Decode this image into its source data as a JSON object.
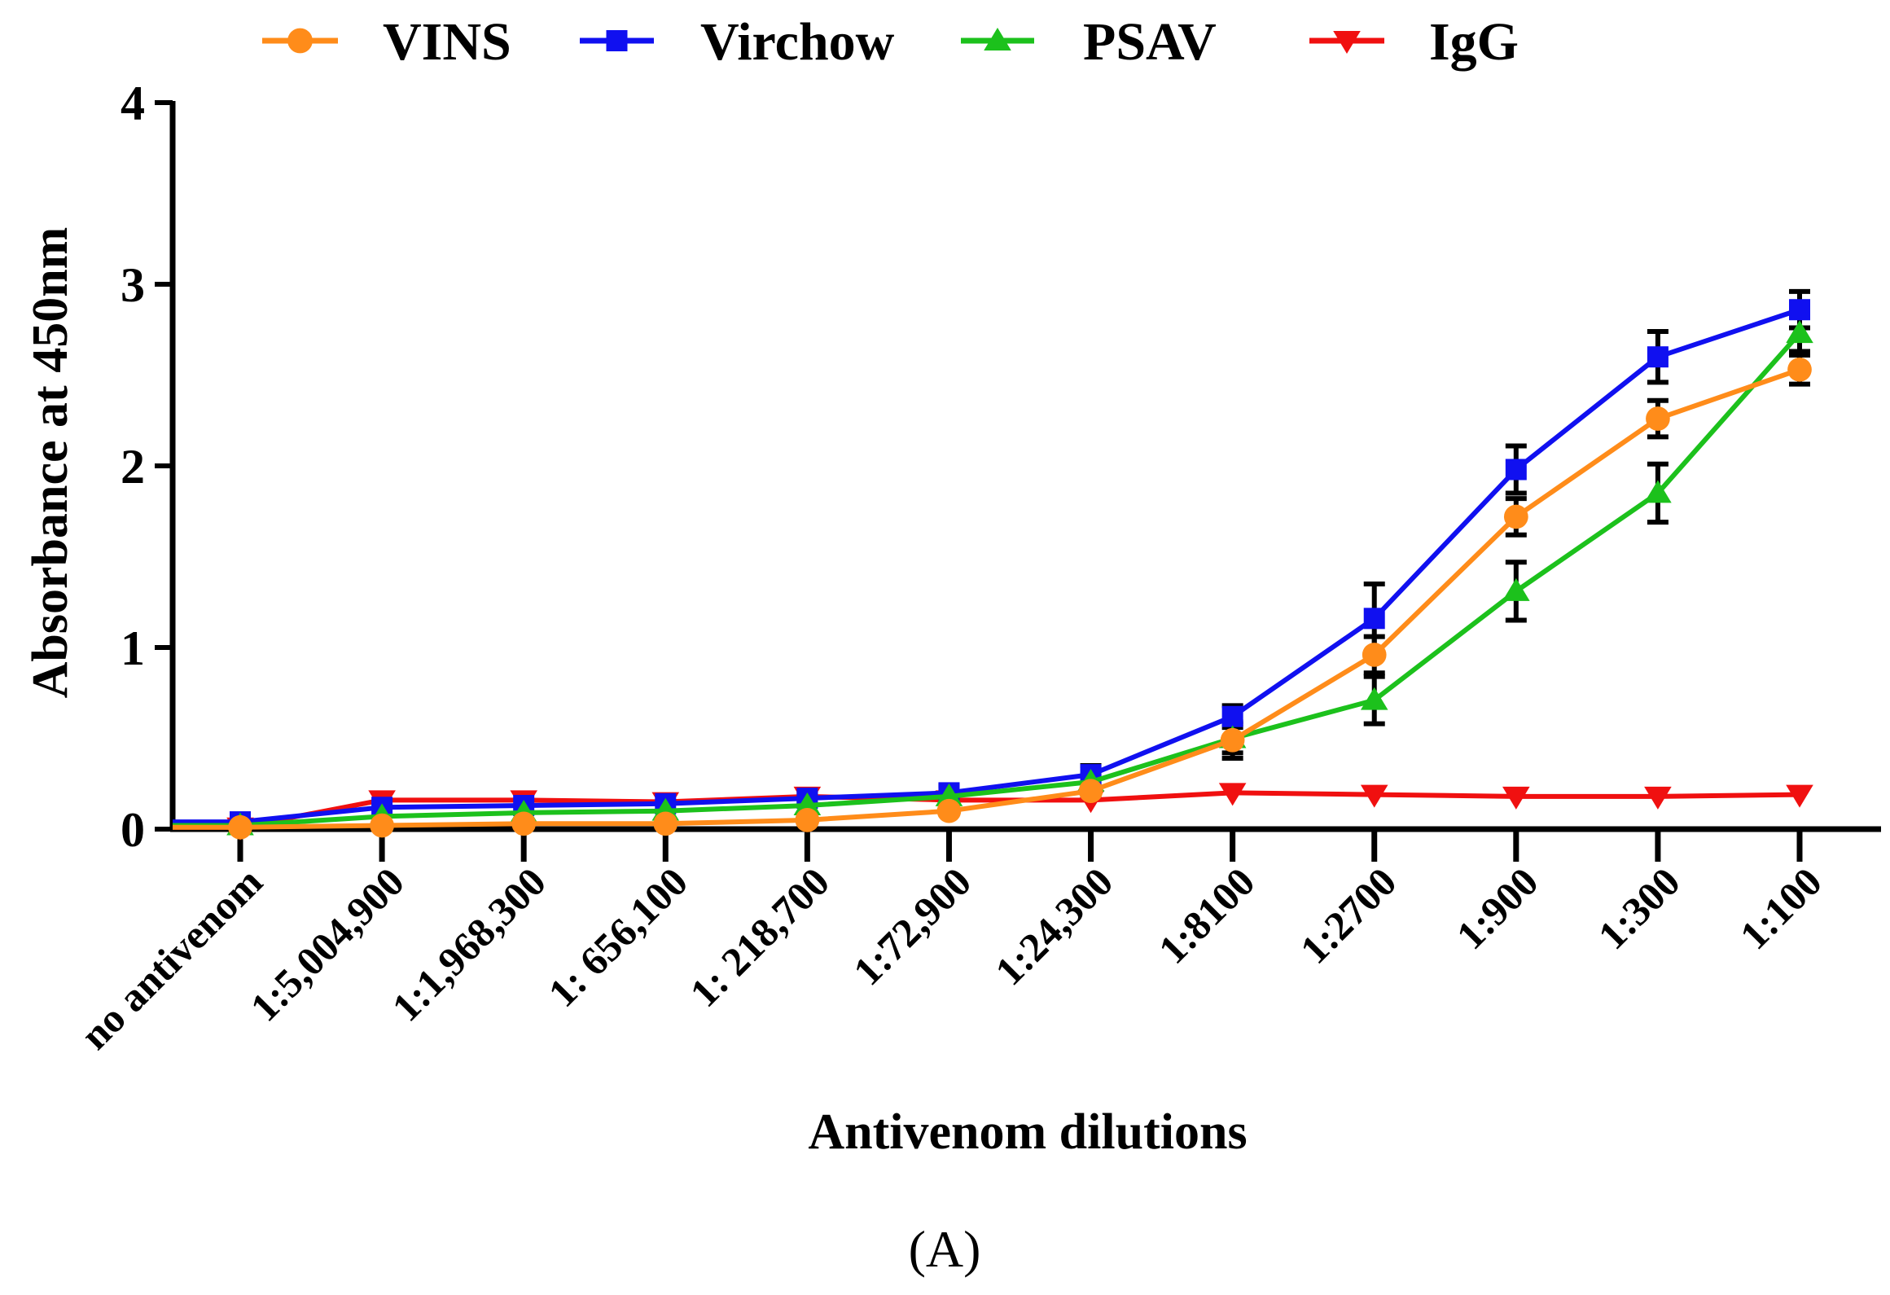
{
  "chart_data": {
    "type": "line",
    "title": "",
    "xlabel": "Antivenom dilutions",
    "ylabel": "Absorbance at 450nm",
    "panel_label": "(A)",
    "ylim": [
      0,
      4
    ],
    "yticks": [
      0,
      1,
      2,
      3,
      4
    ],
    "legend_position": "top",
    "categories": [
      "no antivenom",
      "1:5,004,900",
      "1:1,968,300",
      "1: 656,100",
      "1: 218,700",
      "1:72,900",
      "1:24,300",
      "1:8100",
      "1:2700",
      "1:900",
      "1:300",
      "1:100"
    ],
    "series": [
      {
        "name": "VINS",
        "color": "#ff8c1a",
        "marker": "circle",
        "values": [
          0.01,
          0.02,
          0.03,
          0.03,
          0.05,
          0.1,
          0.21,
          0.49,
          0.96,
          1.72,
          2.26,
          2.53
        ],
        "errors": [
          0,
          0,
          0,
          0,
          0,
          0.02,
          0.04,
          0.1,
          0.1,
          0.1,
          0.1,
          0.08
        ]
      },
      {
        "name": "Virchow",
        "color": "#1010f0",
        "marker": "square",
        "values": [
          0.04,
          0.12,
          0.13,
          0.14,
          0.17,
          0.2,
          0.3,
          0.62,
          1.16,
          1.98,
          2.6,
          2.86
        ],
        "errors": [
          0,
          0,
          0,
          0,
          0.03,
          0.04,
          0.05,
          0.06,
          0.19,
          0.13,
          0.14,
          0.1
        ]
      },
      {
        "name": "PSAV",
        "color": "#1cc11c",
        "marker": "triangle-up",
        "values": [
          0.02,
          0.07,
          0.09,
          0.1,
          0.13,
          0.18,
          0.26,
          0.5,
          0.71,
          1.31,
          1.85,
          2.73
        ],
        "errors": [
          0,
          0,
          0,
          0,
          0,
          0.02,
          0.04,
          0.08,
          0.13,
          0.16,
          0.16,
          0.1
        ]
      },
      {
        "name": "IgG",
        "color": "#f01010",
        "marker": "triangle-down",
        "values": [
          0.01,
          0.16,
          0.16,
          0.15,
          0.18,
          0.16,
          0.16,
          0.2,
          0.19,
          0.18,
          0.18,
          0.19
        ],
        "errors": [
          0,
          0,
          0,
          0,
          0,
          0,
          0,
          0,
          0,
          0,
          0,
          0
        ]
      }
    ]
  }
}
